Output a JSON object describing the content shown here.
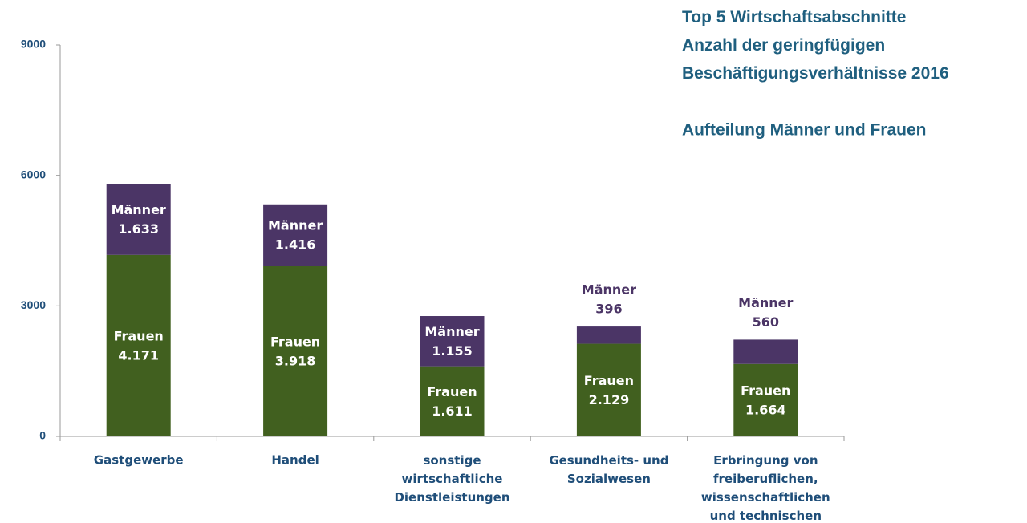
{
  "chart_data": {
    "type": "stacked_bar",
    "title": "Top 5 Wirtschaftsabschnitte\nAnzahl der geringfügigen\nBeschäftigungsverhältnisse 2016",
    "subtitle": "Aufteilung Männer und Frauen",
    "categories": [
      "Gastgewerbe",
      "Handel",
      "sonstige\nwirtschaftliche\nDienstleistungen",
      "Gesundheits- und\nSozialwesen",
      "Erbringung von\nfreiberuflichen,\nwissenschaftlichen\nund technischen"
    ],
    "series": [
      {
        "name": "Frauen",
        "color": "#41601f",
        "values": [
          4171,
          3918,
          1611,
          2129,
          1664
        ],
        "value_labels": [
          "4.171",
          "3.918",
          "1.611",
          "2.129",
          "1.664"
        ]
      },
      {
        "name": "Männer",
        "color": "#4b3566",
        "values": [
          1633,
          1416,
          1155,
          396,
          560
        ],
        "value_labels": [
          "1.633",
          "1.416",
          "1.155",
          "396",
          "560"
        ]
      }
    ],
    "ylim": [
      0,
      9000
    ],
    "yticks": [
      0,
      3000,
      6000,
      9000
    ]
  }
}
